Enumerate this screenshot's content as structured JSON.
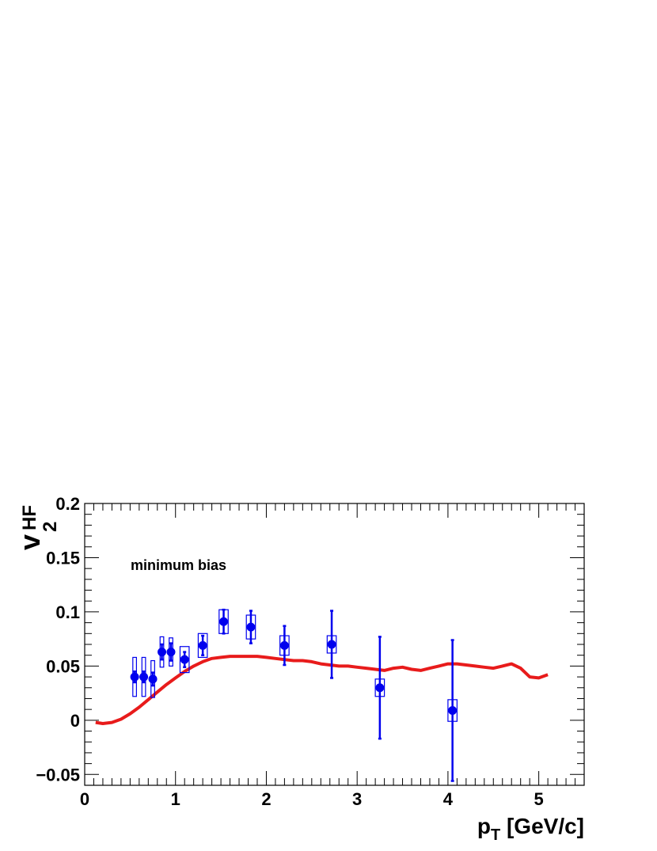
{
  "chart_data": {
    "type": "scatter",
    "title": "",
    "xlabel": {
      "main": "p",
      "sub": "T",
      "rest": " [GeV/c]"
    },
    "ylabel": {
      "main": "v",
      "sub": "2",
      "sup": "HF"
    },
    "annotation": "minimum bias",
    "xlim": [
      0,
      5.5
    ],
    "ylim": [
      -0.06,
      0.2
    ],
    "x_ticks": [
      0,
      1,
      2,
      3,
      4,
      5
    ],
    "x_tick_labels": [
      "0",
      "1",
      "2",
      "3",
      "4",
      "5"
    ],
    "y_ticks": [
      -0.05,
      0,
      0.05,
      0.1,
      0.15,
      0.2
    ],
    "y_tick_labels": [
      "−0.05",
      "0",
      "0.05",
      "0.1",
      "0.15",
      "0.2"
    ],
    "grid": false,
    "legend": "none",
    "series": [
      {
        "kind": "points",
        "color": "#0000ee",
        "points": [
          {
            "x": 0.55,
            "y": 0.04,
            "stat": 0.005,
            "sys_w": 0.04,
            "sys": 0.018
          },
          {
            "x": 0.65,
            "y": 0.04,
            "stat": 0.005,
            "sys_w": 0.04,
            "sys": 0.018
          },
          {
            "x": 0.75,
            "y": 0.038,
            "stat": 0.006,
            "sys_w": 0.04,
            "sys": 0.017
          },
          {
            "x": 0.85,
            "y": 0.063,
            "stat": 0.007,
            "sys_w": 0.04,
            "sys": 0.014
          },
          {
            "x": 0.95,
            "y": 0.063,
            "stat": 0.008,
            "sys_w": 0.04,
            "sys": 0.013
          },
          {
            "x": 1.1,
            "y": 0.056,
            "stat": 0.007,
            "sys_w": 0.1,
            "sys": 0.012
          },
          {
            "x": 1.3,
            "y": 0.069,
            "stat": 0.009,
            "sys_w": 0.1,
            "sys": 0.011
          },
          {
            "x": 1.53,
            "y": 0.091,
            "stat": 0.011,
            "sys_w": 0.1,
            "sys": 0.011
          },
          {
            "x": 1.83,
            "y": 0.086,
            "stat": 0.015,
            "sys_w": 0.1,
            "sys": 0.011
          },
          {
            "x": 2.2,
            "y": 0.069,
            "stat": 0.018,
            "sys_w": 0.1,
            "sys": 0.009
          },
          {
            "x": 2.72,
            "y": 0.07,
            "stat": 0.031,
            "sys_w": 0.1,
            "sys": 0.008
          },
          {
            "x": 3.25,
            "y": 0.03,
            "stat": 0.047,
            "sys_w": 0.1,
            "sys": 0.008
          },
          {
            "x": 4.05,
            "y": 0.009,
            "stat": 0.065,
            "sys_w": 0.1,
            "sys": 0.01
          }
        ]
      },
      {
        "kind": "curve",
        "color": "#e81b1b",
        "x": [
          0.12,
          0.2,
          0.3,
          0.4,
          0.5,
          0.6,
          0.7,
          0.8,
          0.9,
          1.0,
          1.1,
          1.2,
          1.3,
          1.4,
          1.5,
          1.6,
          1.7,
          1.8,
          1.9,
          2.0,
          2.1,
          2.2,
          2.3,
          2.4,
          2.5,
          2.6,
          2.7,
          2.8,
          2.9,
          3.0,
          3.1,
          3.2,
          3.3,
          3.4,
          3.5,
          3.6,
          3.7,
          3.8,
          3.9,
          4.0,
          4.1,
          4.2,
          4.3,
          4.4,
          4.5,
          4.6,
          4.7,
          4.8,
          4.9,
          5.0,
          5.1
        ],
        "y": [
          -0.002,
          -0.003,
          -0.002,
          0.001,
          0.006,
          0.012,
          0.019,
          0.026,
          0.033,
          0.039,
          0.045,
          0.05,
          0.054,
          0.057,
          0.058,
          0.059,
          0.059,
          0.059,
          0.059,
          0.058,
          0.057,
          0.056,
          0.055,
          0.055,
          0.054,
          0.052,
          0.051,
          0.05,
          0.05,
          0.049,
          0.048,
          0.047,
          0.046,
          0.048,
          0.049,
          0.047,
          0.046,
          0.048,
          0.05,
          0.052,
          0.052,
          0.051,
          0.05,
          0.049,
          0.048,
          0.05,
          0.052,
          0.048,
          0.04,
          0.039,
          0.042
        ]
      }
    ]
  }
}
